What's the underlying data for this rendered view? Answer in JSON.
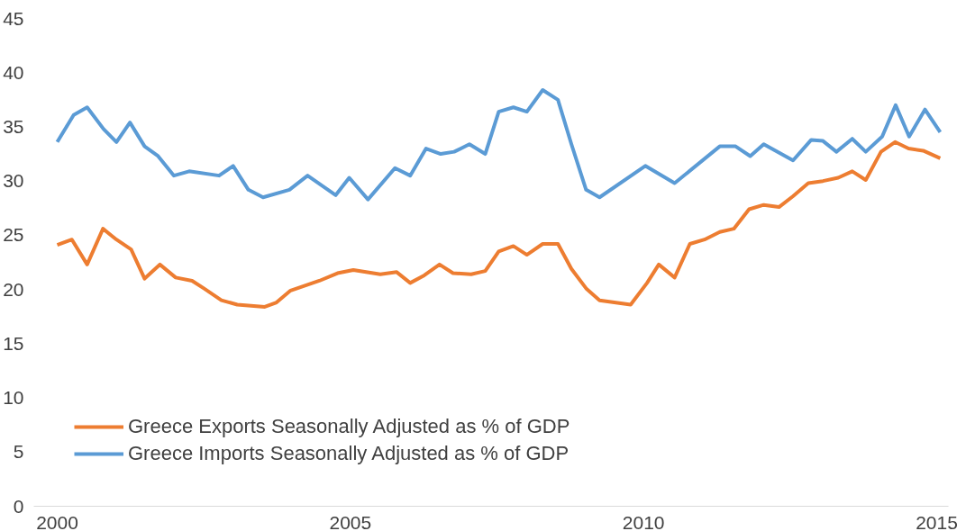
{
  "chart_data": {
    "type": "line",
    "series": [
      {
        "name": "Greece Exports Seasonally Adjusted as % of GDP",
        "color": "#ed7d31",
        "x": [
          2000.0,
          2000.25,
          2000.51,
          2000.78,
          2001.01,
          2001.26,
          2001.49,
          2001.75,
          2002.02,
          2002.3,
          2002.5,
          2002.8,
          2003.07,
          2003.54,
          2003.74,
          2003.98,
          2004.47,
          2004.78,
          2005.05,
          2005.51,
          2005.79,
          2006.02,
          2006.26,
          2006.52,
          2006.75,
          2007.06,
          2007.3,
          2007.53,
          2007.78,
          2008.01,
          2008.28,
          2008.54,
          2008.77,
          2009.02,
          2009.25,
          2009.78,
          2010.06,
          2010.26,
          2010.53,
          2010.79,
          2011.04,
          2011.3,
          2011.54,
          2011.8,
          2012.05,
          2012.31,
          2012.55,
          2012.81,
          2013.06,
          2013.32,
          2013.56,
          2013.79,
          2014.05,
          2014.29,
          2014.52,
          2014.77,
          2015.06
        ],
        "values": [
          24.1,
          24.6,
          22.3,
          25.6,
          24.6,
          23.7,
          21.0,
          22.3,
          21.1,
          20.8,
          20.1,
          19.0,
          18.6,
          18.4,
          18.8,
          19.9,
          20.8,
          21.5,
          21.8,
          21.4,
          21.6,
          20.6,
          21.3,
          22.3,
          21.5,
          21.4,
          21.7,
          23.5,
          24.0,
          23.2,
          24.2,
          24.2,
          21.9,
          20.1,
          19.0,
          18.6,
          20.6,
          22.3,
          21.1,
          24.2,
          24.6,
          25.3,
          25.6,
          27.4,
          27.8,
          27.6,
          28.6,
          29.8,
          30.0,
          30.3,
          30.9,
          30.1,
          32.7,
          33.6,
          33.0,
          32.8,
          32.1
        ]
      },
      {
        "name": "Greece Imports Seasonally Adjusted as % of GDP",
        "color": "#5b9bd5",
        "x": [
          2000.0,
          2000.28,
          2000.51,
          2000.79,
          2001.01,
          2001.24,
          2001.49,
          2001.72,
          2001.99,
          2002.25,
          2002.76,
          2003.0,
          2003.26,
          2003.51,
          2003.96,
          2004.27,
          2004.75,
          2004.98,
          2005.3,
          2005.76,
          2006.02,
          2006.29,
          2006.54,
          2006.77,
          2007.03,
          2007.3,
          2007.53,
          2007.78,
          2008.01,
          2008.28,
          2008.54,
          2008.77,
          2009.02,
          2009.25,
          2010.03,
          2010.53,
          2011.3,
          2011.57,
          2011.82,
          2012.05,
          2012.55,
          2012.86,
          2013.06,
          2013.29,
          2013.56,
          2013.79,
          2014.07,
          2014.3,
          2014.53,
          2014.8,
          2015.06
        ],
        "values": [
          33.6,
          36.1,
          36.8,
          34.8,
          33.6,
          35.4,
          33.2,
          32.3,
          30.5,
          30.9,
          30.5,
          31.4,
          29.2,
          28.5,
          29.2,
          30.5,
          28.7,
          30.3,
          28.3,
          31.2,
          30.5,
          33.0,
          32.5,
          32.7,
          33.4,
          32.5,
          36.4,
          36.8,
          36.4,
          38.4,
          37.5,
          33.4,
          29.2,
          28.5,
          31.4,
          29.8,
          33.2,
          33.2,
          32.3,
          33.4,
          31.9,
          33.8,
          33.7,
          32.7,
          33.9,
          32.7,
          34.1,
          37.0,
          34.1,
          36.6,
          34.5
        ]
      }
    ],
    "xlim": [
      1999.6,
      2015.2
    ],
    "xticks": [
      2000,
      2005,
      2010,
      2015
    ],
    "ylim": [
      0,
      45
    ],
    "yticks": [
      0,
      5,
      10,
      15,
      20,
      25,
      30,
      35,
      40,
      45
    ],
    "grid": false,
    "legend": "bottom left",
    "line_style": "solid",
    "marker": "none"
  }
}
